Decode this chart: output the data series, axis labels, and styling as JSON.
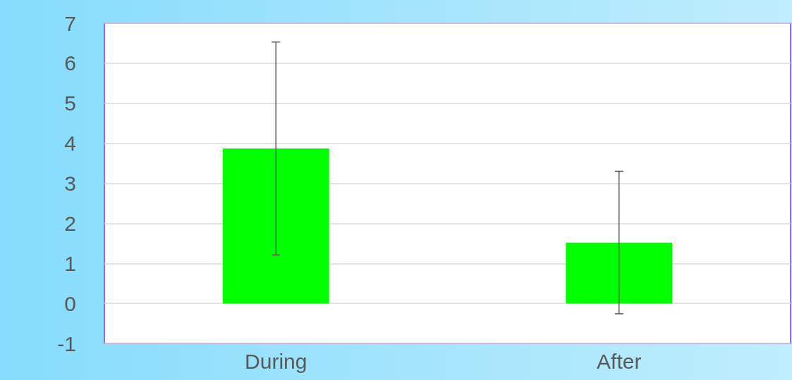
{
  "chart_data": {
    "type": "bar",
    "categories": [
      "During",
      "After"
    ],
    "values": [
      3.87,
      1.52
    ],
    "errors": [
      2.66,
      1.78
    ],
    "color": "#00ff00",
    "ylim": [
      -1,
      7
    ],
    "yticks": [
      -1,
      0,
      1,
      2,
      3,
      4,
      5,
      6,
      7
    ],
    "grid": "y"
  }
}
